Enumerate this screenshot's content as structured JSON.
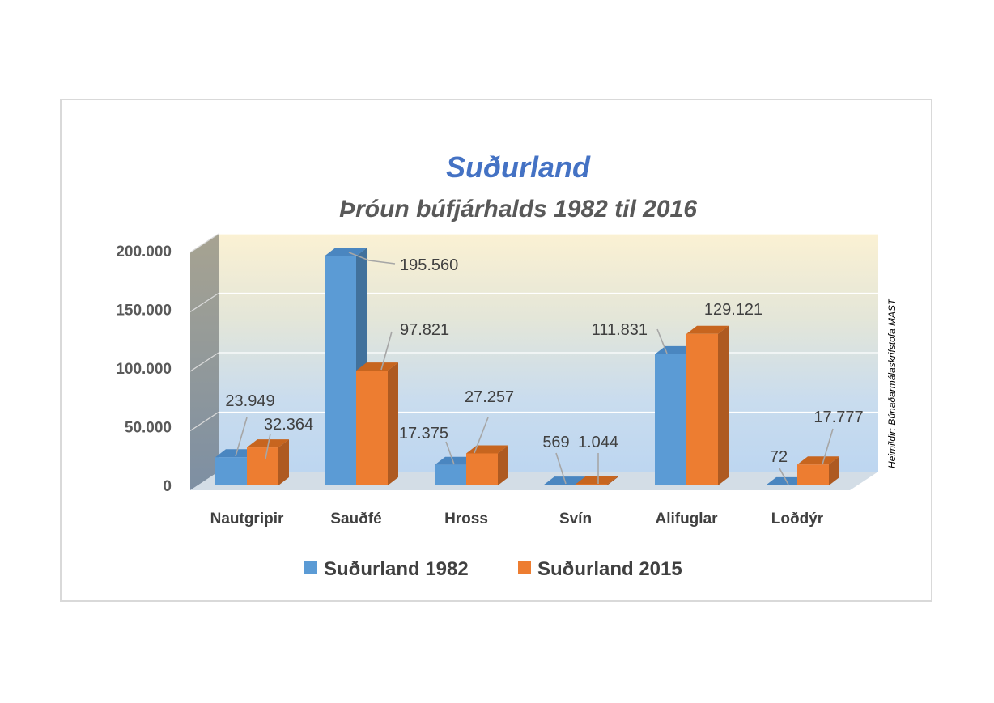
{
  "chart_data": {
    "type": "bar",
    "title": "Suðurland",
    "subtitle": "Þróun búfjárhalds 1982 til 2016",
    "categories": [
      "Nautgripir",
      "Sauðfé",
      "Hross",
      "Svín",
      "Alifuglar",
      "Loðdýr"
    ],
    "series": [
      {
        "name": "Suðurland 1982",
        "color": "#5b9bd5",
        "values": [
          23949,
          195560,
          17375,
          569,
          111831,
          72
        ],
        "labels": [
          "23.949",
          "195.560",
          "17.375",
          "569",
          "111.831",
          "72"
        ]
      },
      {
        "name": "Suðurland 2015",
        "color": "#ed7d31",
        "values": [
          32364,
          97821,
          27257,
          1044,
          129121,
          17777
        ],
        "labels": [
          "32.364",
          "97.821",
          "27.257",
          "1.044",
          "129.121",
          "17.777"
        ]
      }
    ],
    "yticks": [
      "0",
      "50.000",
      "100.000",
      "150.000",
      "200.000"
    ],
    "ylim": [
      0,
      200000
    ],
    "grid": true,
    "legend_position": "bottom",
    "source_note": "Heimildir: Búnaðarmálaskrifstofa MAST"
  }
}
